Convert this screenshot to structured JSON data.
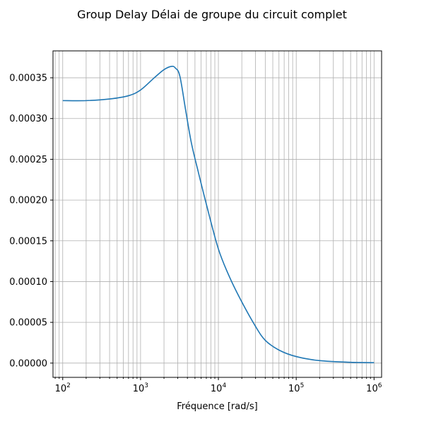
{
  "chart_data": {
    "type": "line",
    "title": "Group Delay Délai de groupe du circuit complet",
    "xlabel": "Fréquence [rad/s]",
    "ylabel": "",
    "xscale": "log",
    "xlim": [
      75,
      1250000
    ],
    "ylim": [
      -1.75e-05,
      0.000383
    ],
    "grid": true,
    "x_ticks": [
      {
        "base": "10",
        "exp": "2",
        "value": 100
      },
      {
        "base": "10",
        "exp": "3",
        "value": 1000
      },
      {
        "base": "10",
        "exp": "4",
        "value": 10000
      },
      {
        "base": "10",
        "exp": "5",
        "value": 100000
      },
      {
        "base": "10",
        "exp": "6",
        "value": 1000000
      }
    ],
    "y_ticks": [
      {
        "label": "0.00000",
        "value": 0
      },
      {
        "label": "0.00005",
        "value": 5e-05
      },
      {
        "label": "0.00010",
        "value": 0.0001
      },
      {
        "label": "0.00015",
        "value": 0.00015
      },
      {
        "label": "0.00020",
        "value": 0.0002
      },
      {
        "label": "0.00025",
        "value": 0.00025
      },
      {
        "label": "0.00030",
        "value": 0.0003
      },
      {
        "label": "0.00035",
        "value": 0.00035
      }
    ],
    "series": [
      {
        "color": "#1f77b4",
        "x": [
          100,
          200,
          400,
          700,
          1000,
          1500,
          2000,
          2500,
          2800,
          3200,
          3800,
          4500,
          5500,
          7000,
          10000,
          14000,
          20000,
          30000,
          40000,
          60000,
          100000,
          200000,
          500000,
          1000000
        ],
        "y": [
          0.000322,
          0.000322,
          0.000324,
          0.000328,
          0.000335,
          0.00035,
          0.00036,
          0.000364,
          0.000362,
          0.000352,
          0.00031,
          0.00027,
          0.000235,
          0.000195,
          0.00014,
          0.000105,
          7.5e-05,
          4.5e-05,
          2.8e-05,
          1.6e-05,
          8e-06,
          3e-06,
          1e-06,
          5e-07
        ]
      }
    ]
  }
}
